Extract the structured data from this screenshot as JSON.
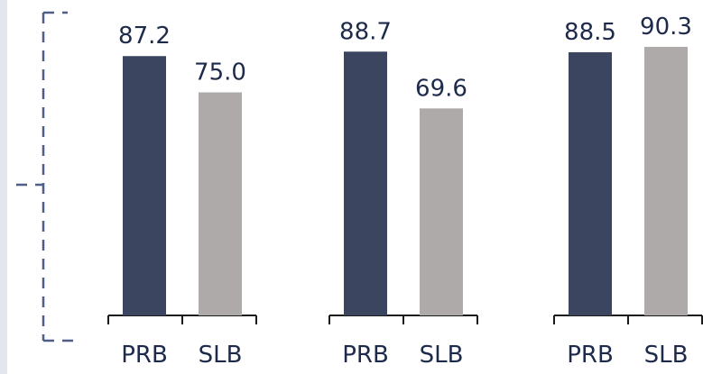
{
  "chart_data": {
    "type": "bar",
    "groups": [
      {
        "categories": [
          "PRB",
          "SLB"
        ],
        "values": [
          87.2,
          75.0
        ],
        "labels": [
          "87.2",
          "75.0"
        ]
      },
      {
        "categories": [
          "PRB",
          "SLB"
        ],
        "values": [
          88.7,
          69.6
        ],
        "labels": [
          "88.7",
          "69.6"
        ]
      },
      {
        "categories": [
          "PRB",
          "SLB"
        ],
        "values": [
          88.5,
          90.3
        ],
        "labels": [
          "88.5",
          "90.3"
        ]
      }
    ],
    "colors": {
      "PRB": "#3b4560",
      "SLB": "#aeaaa9"
    },
    "axis_color": "#1a1a1a",
    "bracket_color": "#4f5e86",
    "ylim": [
      0,
      100
    ],
    "grid": false,
    "legend": "none"
  }
}
